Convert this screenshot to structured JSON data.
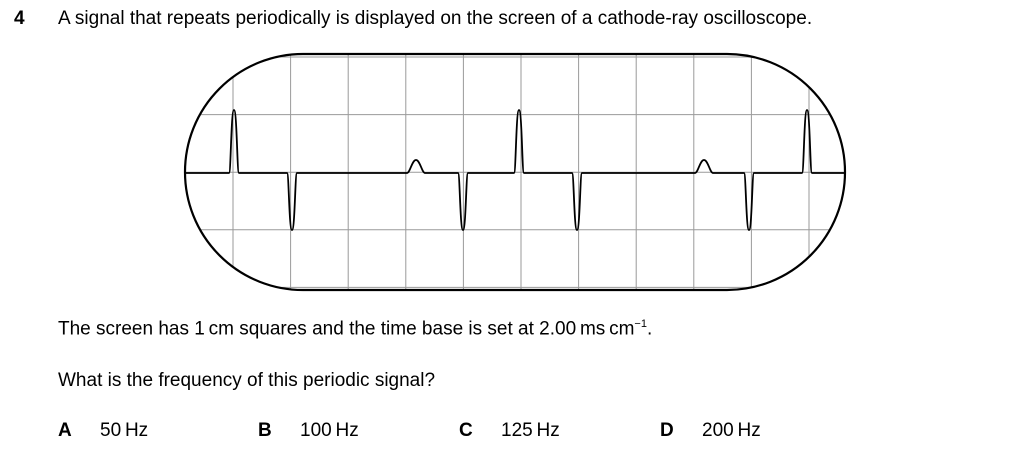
{
  "question": {
    "number": "4",
    "stem": "A signal that repeats periodically is displayed on the screen of a cathode-ray oscilloscope."
  },
  "info": {
    "screen_pre": "The screen has 1 cm squares and the time base is set at 2.00 ms cm",
    "screen_exp": "−1",
    "screen_post": ".",
    "prompt": "What is the frequency of this periodic signal?"
  },
  "options": [
    {
      "letter": "A",
      "text": "50 Hz"
    },
    {
      "letter": "B",
      "text": "100 Hz"
    },
    {
      "letter": "C",
      "text": "125 Hz"
    },
    {
      "letter": "D",
      "text": "200 Hz"
    }
  ]
}
